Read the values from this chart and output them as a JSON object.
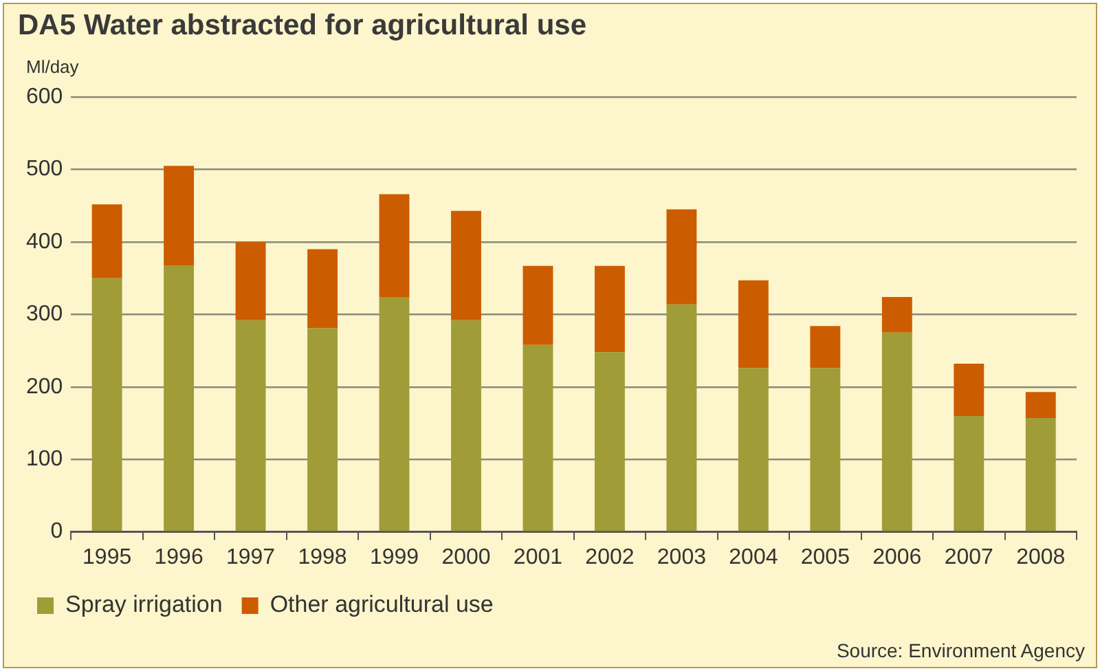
{
  "chart_data": {
    "type": "bar",
    "title": "DA5 Water abstracted for agricultural use",
    "ylabel": "Ml/day",
    "categories": [
      "1995",
      "1996",
      "1997",
      "1998",
      "1999",
      "2000",
      "2001",
      "2002",
      "2003",
      "2004",
      "2005",
      "2006",
      "2007",
      "2008"
    ],
    "series": [
      {
        "name": "Spray irrigation",
        "color": "#a09c38",
        "values": [
          350,
          367,
          292,
          281,
          324,
          292,
          258,
          248,
          314,
          226,
          226,
          275,
          160,
          157
        ]
      },
      {
        "name": "Other agricultural use",
        "color": "#cc5c00",
        "values": [
          102,
          138,
          108,
          109,
          142,
          151,
          109,
          119,
          131,
          121,
          58,
          49,
          72,
          36
        ]
      }
    ],
    "stacked": true,
    "ylim": [
      0,
      600
    ],
    "yticks": [
      0,
      100,
      200,
      300,
      400,
      500,
      600
    ],
    "grid": "y",
    "legend": "bottom",
    "annotations": [
      "Source: Environment Agency"
    ]
  }
}
